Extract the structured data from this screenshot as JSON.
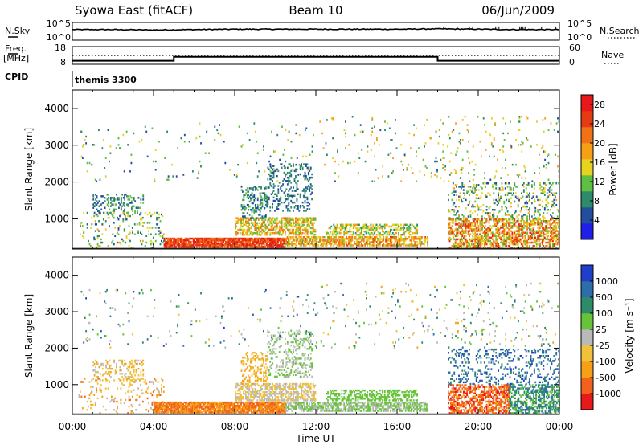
{
  "header": {
    "station": "Syowa East (fitACF)",
    "beam": "Beam 10",
    "date": "06/Jun/2009"
  },
  "top_panels": {
    "nsky_label": "N.Sky",
    "nsky_ticks": [
      "10^5",
      "10^0"
    ],
    "nsearch_label": "N.Search",
    "nsearch_ticks": [
      "10^5",
      "10^0"
    ],
    "freq_label": "Freq.",
    "freq_unit": "[MHz]",
    "freq_ticks": [
      "18",
      "8"
    ],
    "nave_label": "Nave",
    "nave_ticks": [
      "60",
      "0"
    ],
    "cpid_label": "CPID",
    "cpid_value": "themis 3300"
  },
  "colors": {
    "power": [
      "#1f1fe8",
      "#234e9e",
      "#2e8b6a",
      "#5fbf40",
      "#e6d21f",
      "#f5a017",
      "#f07217",
      "#e63a14",
      "#e8191a"
    ],
    "velocity": [
      "#e8191a",
      "#f2621c",
      "#f5a017",
      "#f0c23a",
      "#b9b9b9",
      "#67c43a",
      "#2e8b6a",
      "#2d6ea8",
      "#1f3fc8"
    ]
  },
  "chart_data": [
    {
      "type": "line",
      "name": "nsky_nsearch",
      "ylim_log10": [
        0,
        5
      ],
      "x": [
        0,
        2,
        4,
        6,
        8,
        10,
        12,
        14,
        16,
        18,
        20,
        22,
        24
      ],
      "nsky_log10": [
        3.0,
        3.0,
        2.9,
        3.0,
        3.1,
        3.1,
        3.1,
        3.1,
        3.1,
        3.2,
        3.1,
        3.0,
        3.0
      ]
    },
    {
      "type": "line",
      "name": "freq_nave",
      "freq_ylim": [
        8,
        18
      ],
      "nave_ylim": [
        0,
        60
      ],
      "freq": {
        "x": [
          0,
          5,
          5,
          18,
          18,
          24
        ],
        "y": [
          10,
          10,
          12.2,
          12.2,
          10,
          10
        ]
      },
      "nave": {
        "x": [
          0,
          24
        ],
        "y": [
          30,
          30
        ]
      }
    },
    {
      "type": "heatmap",
      "name": "power",
      "title": "",
      "xlabel": "",
      "ylabel": "Slant Range [km]",
      "xlim": [
        0,
        24
      ],
      "ylim": [
        180,
        4500
      ],
      "x_ticks": [
        "00:00",
        "04:00",
        "08:00",
        "12:00",
        "16:00",
        "20:00",
        "00:00"
      ],
      "y_ticks": [
        "1000",
        "2000",
        "3000",
        "4000"
      ],
      "colorbar": {
        "label": "Power [dB]",
        "ticks": [
          "4",
          "8",
          "12",
          "16",
          "20",
          "24",
          "28"
        ],
        "range": [
          0,
          30
        ]
      },
      "blobs": [
        {
          "t0": 4.5,
          "t1": 10.5,
          "r0": 220,
          "r1": 500,
          "v": [
            20,
            30
          ],
          "d": 0.9
        },
        {
          "t0": 10.5,
          "t1": 17.5,
          "r0": 260,
          "r1": 520,
          "v": [
            12,
            24
          ],
          "d": 0.7
        },
        {
          "t0": 8,
          "t1": 12,
          "r0": 550,
          "r1": 1050,
          "v": [
            10,
            22
          ],
          "d": 0.55
        },
        {
          "t0": 12.5,
          "t1": 17,
          "r0": 550,
          "r1": 850,
          "v": [
            8,
            20
          ],
          "d": 0.45
        },
        {
          "t0": 8.3,
          "t1": 9.6,
          "r0": 1000,
          "r1": 1900,
          "v": [
            4,
            12
          ],
          "d": 0.3
        },
        {
          "t0": 9.6,
          "t1": 11.8,
          "r0": 1200,
          "r1": 2500,
          "v": [
            4,
            10
          ],
          "d": 0.22
        },
        {
          "t0": 1,
          "t1": 3.5,
          "r0": 1100,
          "r1": 1700,
          "v": [
            4,
            12
          ],
          "d": 0.25
        },
        {
          "t0": 0.3,
          "t1": 4.5,
          "r0": 200,
          "r1": 1200,
          "v": [
            4,
            18
          ],
          "d": 0.1
        },
        {
          "t0": 18.5,
          "t1": 24,
          "r0": 200,
          "r1": 1000,
          "v": [
            10,
            28
          ],
          "d": 0.55
        },
        {
          "t0": 18.5,
          "t1": 24,
          "r0": 1000,
          "r1": 2000,
          "v": [
            4,
            18
          ],
          "d": 0.18
        },
        {
          "t0": 12,
          "t1": 24,
          "r0": 2000,
          "r1": 3800,
          "v": [
            6,
            20
          ],
          "d": 0.03
        },
        {
          "t0": 0.3,
          "t1": 12,
          "r0": 2000,
          "r1": 3600,
          "v": [
            4,
            16
          ],
          "d": 0.02
        }
      ]
    },
    {
      "type": "heatmap",
      "name": "velocity",
      "title": "",
      "xlabel": "Time UT",
      "ylabel": "Slant Range [km]",
      "xlim": [
        0,
        24
      ],
      "ylim": [
        180,
        4500
      ],
      "x_ticks": [
        "00:00",
        "04:00",
        "08:00",
        "12:00",
        "16:00",
        "20:00",
        "00:00"
      ],
      "y_ticks": [
        "1000",
        "2000",
        "3000",
        "4000"
      ],
      "colorbar": {
        "label": "Velocity [m s⁻¹]",
        "ticks": [
          "1000",
          "500",
          "100",
          "25",
          "-25",
          "-100",
          "-500",
          "-1000"
        ]
      },
      "blobs": [
        {
          "t0": 4,
          "t1": 10.5,
          "r0": 220,
          "r1": 520,
          "v": [
            1,
            2
          ],
          "d": 0.9
        },
        {
          "t0": 8,
          "t1": 12,
          "r0": 550,
          "r1": 1050,
          "v": [
            3,
            4
          ],
          "d": 0.55
        },
        {
          "t0": 10.5,
          "t1": 17.5,
          "r0": 260,
          "r1": 520,
          "v": [
            4,
            5
          ],
          "d": 0.65
        },
        {
          "t0": 12.5,
          "t1": 17,
          "r0": 550,
          "r1": 850,
          "v": [
            5,
            5
          ],
          "d": 0.45
        },
        {
          "t0": 8.3,
          "t1": 9.6,
          "r0": 1000,
          "r1": 1900,
          "v": [
            2,
            3
          ],
          "d": 0.3
        },
        {
          "t0": 9.6,
          "t1": 11.8,
          "r0": 1200,
          "r1": 2500,
          "v": [
            4,
            5
          ],
          "d": 0.22
        },
        {
          "t0": 1,
          "t1": 3.5,
          "r0": 1100,
          "r1": 1700,
          "v": [
            2,
            4
          ],
          "d": 0.25
        },
        {
          "t0": 0.3,
          "t1": 4.5,
          "r0": 200,
          "r1": 1200,
          "v": [
            1,
            4
          ],
          "d": 0.1
        },
        {
          "t0": 18.5,
          "t1": 21.5,
          "r0": 200,
          "r1": 1000,
          "v": [
            0,
            2
          ],
          "d": 0.55
        },
        {
          "t0": 21.5,
          "t1": 24,
          "r0": 200,
          "r1": 1000,
          "v": [
            5,
            7
          ],
          "d": 0.5
        },
        {
          "t0": 18.5,
          "t1": 24,
          "r0": 1000,
          "r1": 2000,
          "v": [
            6,
            8
          ],
          "d": 0.18
        },
        {
          "t0": 12,
          "t1": 24,
          "r0": 2000,
          "r1": 3800,
          "v": [
            2,
            7
          ],
          "d": 0.03
        },
        {
          "t0": 0.3,
          "t1": 12,
          "r0": 2000,
          "r1": 3600,
          "v": [
            3,
            8
          ],
          "d": 0.02
        }
      ]
    }
  ]
}
